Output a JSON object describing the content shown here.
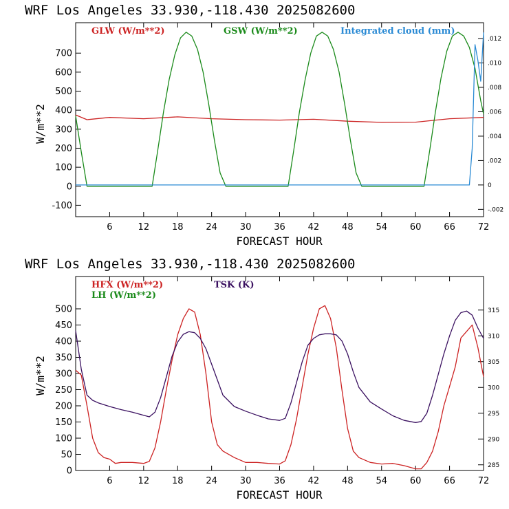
{
  "chart_data": [
    {
      "type": "line",
      "title": "WRF  Los Angeles   33.930,-118.430  2025082600",
      "xlabel": "FORECAST HOUR",
      "ylabel": "W/m**2",
      "xlim": [
        0,
        72
      ],
      "ylim": [
        -160,
        860
      ],
      "y2lim": [
        -0.0026,
        0.0133
      ],
      "xticks": [
        "6",
        "12",
        "18",
        "24",
        "30",
        "36",
        "42",
        "48",
        "54",
        "60",
        "66",
        "72"
      ],
      "yticks": [
        "-100",
        "0",
        "100",
        "200",
        "300",
        "400",
        "500",
        "600",
        "700"
      ],
      "y2ticks": [
        "-.002",
        "0",
        ".002",
        ".004",
        ".006",
        ".008",
        ".010",
        ".012"
      ],
      "grid": false,
      "legend": "top",
      "series": [
        {
          "name": "GLW (W/m**2)",
          "color": "#cc2222",
          "axis": "left",
          "x": [
            0,
            2,
            6,
            12,
            18,
            24,
            30,
            36,
            42,
            48,
            54,
            60,
            66,
            72
          ],
          "y": [
            375,
            350,
            362,
            355,
            365,
            355,
            350,
            348,
            352,
            342,
            336,
            337,
            355,
            362
          ]
        },
        {
          "name": "GSW (W/m**2)",
          "color": "#1a8a1a",
          "axis": "left",
          "x": [
            0,
            1,
            2,
            13.5,
            14.5,
            15.5,
            16.5,
            17.5,
            18.5,
            19.5,
            20.5,
            21.5,
            22.5,
            23.5,
            24.5,
            25.5,
            26.5,
            37.5,
            38.5,
            39.5,
            40.5,
            41.5,
            42.5,
            43.5,
            44.5,
            45.5,
            46.5,
            47.5,
            48.5,
            49.5,
            50.5,
            61.5,
            62.5,
            63.5,
            64.5,
            65.5,
            66.5,
            67.5,
            68.5,
            69.5,
            70.5,
            71.5,
            72
          ],
          "y": [
            370,
            180,
            0,
            0,
            190,
            390,
            560,
            690,
            780,
            810,
            790,
            720,
            600,
            430,
            240,
            70,
            0,
            0,
            190,
            390,
            560,
            700,
            790,
            810,
            790,
            720,
            600,
            430,
            240,
            70,
            0,
            0,
            190,
            390,
            570,
            710,
            790,
            810,
            790,
            730,
            620,
            450,
            380
          ]
        },
        {
          "name": "Integrated cloud (mm)",
          "color": "#2a8ad4",
          "axis": "right",
          "x": [
            0,
            69.5,
            70,
            70.5,
            71,
            71.5,
            72
          ],
          "y": [
            0,
            0,
            0.003,
            0.0115,
            0.0102,
            0.0085,
            0.0125
          ]
        }
      ]
    },
    {
      "type": "line",
      "title": "WRF  Los Angeles   33.930,-118.430  2025082600",
      "xlabel": "FORECAST HOUR",
      "ylabel": "W/m**2",
      "xlim": [
        0,
        72
      ],
      "ylim": [
        0,
        600
      ],
      "y2lim": [
        283.9,
        321.5
      ],
      "xticks": [
        "6",
        "12",
        "18",
        "24",
        "30",
        "36",
        "42",
        "48",
        "54",
        "60",
        "66",
        "72"
      ],
      "yticks": [
        "0",
        "50",
        "100",
        "150",
        "200",
        "250",
        "300",
        "350",
        "400",
        "450",
        "500"
      ],
      "y2ticks": [
        "285",
        "290",
        "295",
        "300",
        "305",
        "310",
        "315"
      ],
      "grid": false,
      "legend": "top-left",
      "series": [
        {
          "name": "HFX (W/m**2)",
          "color": "#cc2222",
          "axis": "left",
          "x": [
            0,
            1,
            2,
            3,
            4,
            5,
            6,
            7,
            8,
            10,
            12,
            13,
            14,
            15,
            16,
            17,
            18,
            19,
            20,
            21,
            22,
            23,
            24,
            25,
            26,
            28,
            30,
            32,
            34,
            36,
            37,
            38,
            39,
            40,
            41,
            42,
            43,
            44,
            45,
            46,
            47,
            48,
            49,
            50,
            52,
            54,
            56,
            58,
            60,
            61,
            62,
            63,
            64,
            65,
            66,
            67,
            68,
            69,
            70,
            71,
            72
          ],
          "y": [
            310,
            295,
            200,
            100,
            55,
            40,
            35,
            22,
            25,
            25,
            22,
            28,
            70,
            150,
            250,
            340,
            420,
            470,
            500,
            490,
            420,
            300,
            150,
            80,
            60,
            40,
            25,
            25,
            22,
            20,
            30,
            80,
            160,
            260,
            360,
            440,
            500,
            510,
            470,
            380,
            250,
            130,
            60,
            40,
            25,
            20,
            22,
            15,
            5,
            5,
            25,
            60,
            120,
            200,
            260,
            320,
            410,
            430,
            450,
            380,
            290
          ]
        },
        {
          "name": "LH  (W/m**2)",
          "color": "#1a8a1a",
          "axis": "left",
          "x": [],
          "y": []
        },
        {
          "name": "TSK (K)",
          "color": "#3a1060",
          "axis": "right",
          "x": [
            0,
            1,
            2,
            3,
            4,
            6,
            8,
            10,
            12,
            13,
            14,
            15,
            16,
            17,
            18,
            19,
            20,
            21,
            22,
            23,
            24,
            25,
            26,
            28,
            30,
            32,
            34,
            36,
            37,
            38,
            39,
            40,
            41,
            42,
            43,
            44,
            45,
            46,
            47,
            48,
            49,
            50,
            52,
            54,
            56,
            58,
            60,
            61,
            62,
            63,
            64,
            65,
            66,
            67,
            68,
            69,
            70,
            71,
            72
          ],
          "y": [
            311,
            303.5,
            298.5,
            297.5,
            297,
            296.3,
            295.7,
            295.2,
            294.6,
            294.3,
            295.2,
            298,
            302,
            306,
            308.8,
            310.3,
            310.8,
            310.6,
            309.5,
            307.5,
            304.5,
            301.5,
            298.5,
            296.3,
            295.4,
            294.6,
            293.9,
            293.6,
            294,
            297,
            301,
            305,
            308.2,
            309.5,
            310.2,
            310.4,
            310.4,
            310.2,
            309,
            306.5,
            303,
            300,
            297.2,
            295.8,
            294.5,
            293.6,
            293.2,
            293.4,
            295,
            298.5,
            302.5,
            306.5,
            310,
            313,
            314.5,
            314.8,
            314,
            311.5,
            309.5
          ]
        }
      ]
    }
  ]
}
